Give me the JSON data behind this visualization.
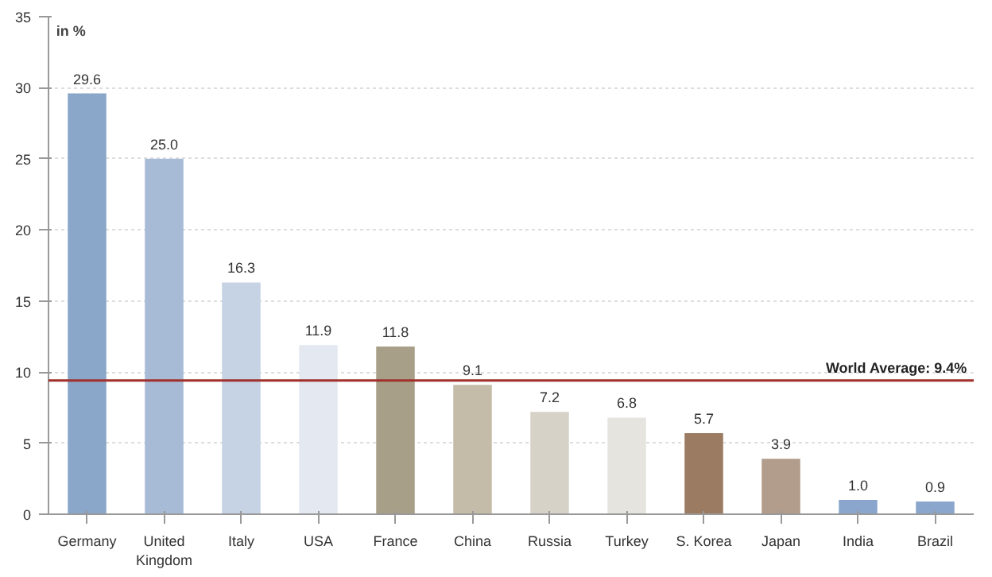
{
  "chart_data": {
    "type": "bar",
    "ylabel": "in %",
    "categories": [
      "Germany",
      "United\nKingdom",
      "Italy",
      "USA",
      "France",
      "China",
      "Russia",
      "Turkey",
      "S. Korea",
      "Japan",
      "India",
      "Brazil"
    ],
    "values": [
      29.6,
      25.0,
      16.3,
      11.9,
      11.8,
      9.1,
      7.2,
      6.8,
      5.7,
      3.9,
      1.0,
      0.9
    ],
    "colors": [
      "#8aa6c8",
      "#a7bbd6",
      "#c6d3e5",
      "#e3e8f1",
      "#a89f88",
      "#c4bba9",
      "#d6d2c8",
      "#e5e4df",
      "#9b7b61",
      "#b29c8b",
      "#8aa6cc",
      "#8aa6cc"
    ],
    "value_labels": [
      "29.6",
      "25.0",
      "16.3",
      "11.9",
      "11.8",
      "9.1",
      "7.2",
      "6.8",
      "5.7",
      "3.9",
      "1.0",
      "0.9"
    ],
    "ylim": [
      0,
      35
    ],
    "yticks": [
      0,
      5,
      10,
      15,
      20,
      25,
      30,
      35
    ],
    "grid": "y",
    "ref_lines": [
      {
        "axis": "y",
        "value": 9.4,
        "label": "World Average: 9.4%",
        "color": "#a0302c"
      }
    ]
  }
}
